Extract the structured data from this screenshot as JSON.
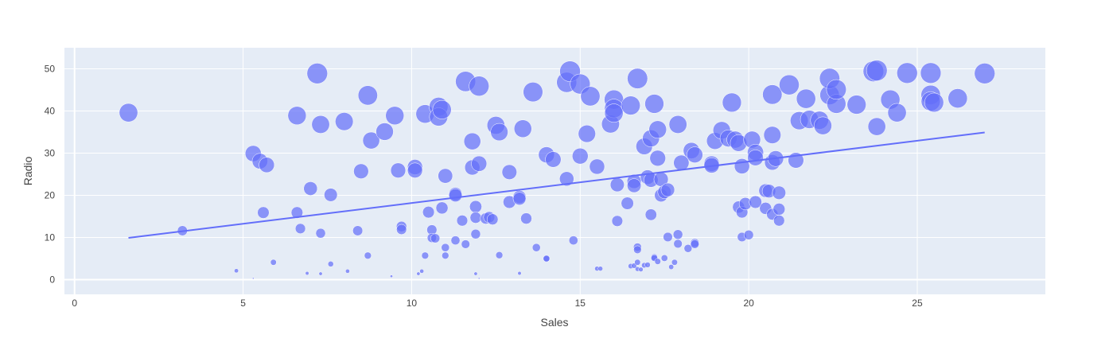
{
  "chart_data": {
    "type": "scatter",
    "title": "",
    "xlabel": "Sales",
    "ylabel": "Radio",
    "xlim": [
      -0.3,
      28.8
    ],
    "ylim": [
      -3.5,
      55
    ],
    "xticks": [
      0,
      5,
      10,
      15,
      20,
      25
    ],
    "yticks": [
      0,
      10,
      20,
      30,
      40,
      50
    ],
    "grid": true,
    "legend": "none",
    "colors": {
      "marker": "#636efa",
      "line": "#636efa",
      "plot_bg": "#e5ecf6",
      "grid": "#ffffff",
      "text": "#444444"
    },
    "size_encoding": "Radio",
    "trendline": {
      "x": [
        1.6,
        27.0
      ],
      "y": [
        9.9,
        34.9
      ]
    },
    "points": [
      [
        1.6,
        39.6
      ],
      [
        3.2,
        11.6
      ],
      [
        4.8,
        2.1
      ],
      [
        5.3,
        0.3
      ],
      [
        5.3,
        29.9
      ],
      [
        5.5,
        28.1
      ],
      [
        5.6,
        15.9
      ],
      [
        5.7,
        27.2
      ],
      [
        5.9,
        4.1
      ],
      [
        6.6,
        38.9
      ],
      [
        6.6,
        15.9
      ],
      [
        6.7,
        12.1
      ],
      [
        6.9,
        1.5
      ],
      [
        7.0,
        21.6
      ],
      [
        7.2,
        48.9
      ],
      [
        7.3,
        36.8
      ],
      [
        7.3,
        11.0
      ],
      [
        7.3,
        1.4
      ],
      [
        7.6,
        20.1
      ],
      [
        7.6,
        3.7
      ],
      [
        8.0,
        37.5
      ],
      [
        8.1,
        2.0
      ],
      [
        8.4,
        11.6
      ],
      [
        8.5,
        25.7
      ],
      [
        8.7,
        43.7
      ],
      [
        8.7,
        5.7
      ],
      [
        8.8,
        33.0
      ],
      [
        9.2,
        35.1
      ],
      [
        9.4,
        0.8
      ],
      [
        9.5,
        38.9
      ],
      [
        9.6,
        25.9
      ],
      [
        9.7,
        12.6
      ],
      [
        9.7,
        11.9
      ],
      [
        10.1,
        26.7
      ],
      [
        10.1,
        25.9
      ],
      [
        10.2,
        1.4
      ],
      [
        10.3,
        2.0
      ],
      [
        10.4,
        39.3
      ],
      [
        10.4,
        5.7
      ],
      [
        10.5,
        16.0
      ],
      [
        10.6,
        11.8
      ],
      [
        10.6,
        9.9
      ],
      [
        10.7,
        9.8
      ],
      [
        10.8,
        41.0
      ],
      [
        10.8,
        38.6
      ],
      [
        10.9,
        40.3
      ],
      [
        10.9,
        17.0
      ],
      [
        11.0,
        24.6
      ],
      [
        11.0,
        7.6
      ],
      [
        11.0,
        5.7
      ],
      [
        11.3,
        20.3
      ],
      [
        11.3,
        20.0
      ],
      [
        11.3,
        9.3
      ],
      [
        11.5,
        14.0
      ],
      [
        11.6,
        47.0
      ],
      [
        11.6,
        8.4
      ],
      [
        11.8,
        32.8
      ],
      [
        11.8,
        26.6
      ],
      [
        11.9,
        17.3
      ],
      [
        11.9,
        14.7
      ],
      [
        11.9,
        10.8
      ],
      [
        11.9,
        1.4
      ],
      [
        12.0,
        45.9
      ],
      [
        12.0,
        27.5
      ],
      [
        12.0,
        0.3
      ],
      [
        12.2,
        14.5
      ],
      [
        12.3,
        14.8
      ],
      [
        12.4,
        14.3
      ],
      [
        12.5,
        36.6
      ],
      [
        12.6,
        35.0
      ],
      [
        12.6,
        5.8
      ],
      [
        12.9,
        25.5
      ],
      [
        12.9,
        18.4
      ],
      [
        13.2,
        19.6
      ],
      [
        13.2,
        19.2
      ],
      [
        13.2,
        1.5
      ],
      [
        13.3,
        35.8
      ],
      [
        13.4,
        14.5
      ],
      [
        13.6,
        44.5
      ],
      [
        13.7,
        7.6
      ],
      [
        14.0,
        29.6
      ],
      [
        14.0,
        4.9
      ],
      [
        14.0,
        5.0
      ],
      [
        14.2,
        28.5
      ],
      [
        14.6,
        46.8
      ],
      [
        14.6,
        23.9
      ],
      [
        14.7,
        49.4
      ],
      [
        14.8,
        9.3
      ],
      [
        15.0,
        46.4
      ],
      [
        15.0,
        29.3
      ],
      [
        15.2,
        34.6
      ],
      [
        15.3,
        43.5
      ],
      [
        15.5,
        26.8
      ],
      [
        15.5,
        2.6
      ],
      [
        15.6,
        2.6
      ],
      [
        15.9,
        36.9
      ],
      [
        16.0,
        42.7
      ],
      [
        16.0,
        40.6
      ],
      [
        16.0,
        39.5
      ],
      [
        16.1,
        22.5
      ],
      [
        16.1,
        13.9
      ],
      [
        16.4,
        18.1
      ],
      [
        16.5,
        41.3
      ],
      [
        16.5,
        3.2
      ],
      [
        16.6,
        23.3
      ],
      [
        16.6,
        22.3
      ],
      [
        16.6,
        3.3
      ],
      [
        16.7,
        47.7
      ],
      [
        16.7,
        7.7
      ],
      [
        16.7,
        7.1
      ],
      [
        16.7,
        4.1
      ],
      [
        16.7,
        2.5
      ],
      [
        16.8,
        2.4
      ],
      [
        16.9,
        31.6
      ],
      [
        16.9,
        3.4
      ],
      [
        17.0,
        24.3
      ],
      [
        17.0,
        3.5
      ],
      [
        17.1,
        33.5
      ],
      [
        17.1,
        23.6
      ],
      [
        17.1,
        15.4
      ],
      [
        17.2,
        41.7
      ],
      [
        17.2,
        5.3
      ],
      [
        17.2,
        5.1
      ],
      [
        17.3,
        28.8
      ],
      [
        17.3,
        35.6
      ],
      [
        17.3,
        4.3
      ],
      [
        17.4,
        23.8
      ],
      [
        17.4,
        20.0
      ],
      [
        17.5,
        20.8
      ],
      [
        17.5,
        5.1
      ],
      [
        17.6,
        21.3
      ],
      [
        17.6,
        10.1
      ],
      [
        17.7,
        3.0
      ],
      [
        17.8,
        4.1
      ],
      [
        17.9,
        36.8
      ],
      [
        17.9,
        10.7
      ],
      [
        17.9,
        8.5
      ],
      [
        18.0,
        27.7
      ],
      [
        18.2,
        7.4
      ],
      [
        18.3,
        30.6
      ],
      [
        18.4,
        29.6
      ],
      [
        18.4,
        8.7
      ],
      [
        18.4,
        8.4
      ],
      [
        18.9,
        27.5
      ],
      [
        18.9,
        27.1
      ],
      [
        19.0,
        32.9
      ],
      [
        19.2,
        35.4
      ],
      [
        19.4,
        33.5
      ],
      [
        19.5,
        42.0
      ],
      [
        19.6,
        33.2
      ],
      [
        19.7,
        32.4
      ],
      [
        19.7,
        17.2
      ],
      [
        19.8,
        26.9
      ],
      [
        19.8,
        16.0
      ],
      [
        19.8,
        10.1
      ],
      [
        19.9,
        18.0
      ],
      [
        20.0,
        10.6
      ],
      [
        20.1,
        33.2
      ],
      [
        20.2,
        30.2
      ],
      [
        20.2,
        28.9
      ],
      [
        20.2,
        18.4
      ],
      [
        20.5,
        21.1
      ],
      [
        20.5,
        16.9
      ],
      [
        20.6,
        21.0
      ],
      [
        20.7,
        43.9
      ],
      [
        20.7,
        34.3
      ],
      [
        20.7,
        27.8
      ],
      [
        20.7,
        15.5
      ],
      [
        20.8,
        28.7
      ],
      [
        20.9,
        20.6
      ],
      [
        20.9,
        16.7
      ],
      [
        20.9,
        14.0
      ],
      [
        21.2,
        46.2
      ],
      [
        21.4,
        28.3
      ],
      [
        21.5,
        37.7
      ],
      [
        21.7,
        42.9
      ],
      [
        21.8,
        38.0
      ],
      [
        22.1,
        37.8
      ],
      [
        22.2,
        36.5
      ],
      [
        22.4,
        43.8
      ],
      [
        22.4,
        47.7
      ],
      [
        22.6,
        41.7
      ],
      [
        22.6,
        45.1
      ],
      [
        23.2,
        41.5
      ],
      [
        23.7,
        49.4
      ],
      [
        23.8,
        36.3
      ],
      [
        23.8,
        49.6
      ],
      [
        24.2,
        42.7
      ],
      [
        24.4,
        39.6
      ],
      [
        24.7,
        49.0
      ],
      [
        25.4,
        43.8
      ],
      [
        25.4,
        42.3
      ],
      [
        25.4,
        49.0
      ],
      [
        25.5,
        42.0
      ],
      [
        26.2,
        43.0
      ],
      [
        27.0,
        48.9
      ]
    ]
  }
}
